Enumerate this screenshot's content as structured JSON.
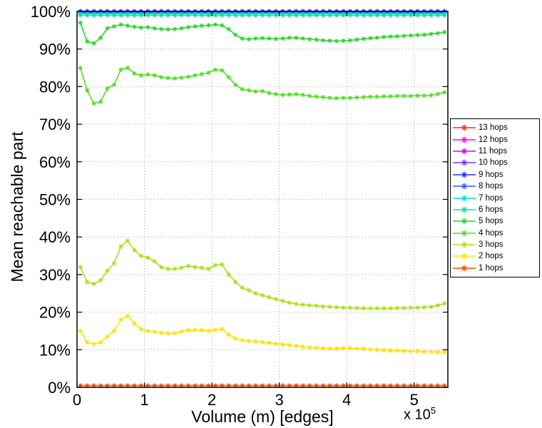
{
  "chart_data": {
    "type": "line",
    "title": "",
    "xlabel": "Volume (m) [edges]",
    "ylabel": "Mean reachable part",
    "x_scale_label": {
      "base": "x 10",
      "exponent": "5"
    },
    "xlim": [
      0,
      5.5
    ],
    "ylim": [
      0,
      100
    ],
    "xticks": [
      0,
      1,
      2,
      3,
      4,
      5
    ],
    "xtick_labels": [
      "0",
      "1",
      "2",
      "3",
      "4",
      "5"
    ],
    "yticks": [
      0,
      10,
      20,
      30,
      40,
      50,
      60,
      70,
      80,
      90,
      100
    ],
    "ytick_labels": [
      "0%",
      "10%",
      "20%",
      "30%",
      "40%",
      "50%",
      "60%",
      "70%",
      "80%",
      "90%",
      "100%"
    ],
    "grid": true,
    "legend_position": "right",
    "marker": "asterisk",
    "x": [
      0.05,
      0.15,
      0.25,
      0.35,
      0.45,
      0.55,
      0.65,
      0.75,
      0.85,
      0.95,
      1.05,
      1.15,
      1.25,
      1.35,
      1.45,
      1.55,
      1.65,
      1.75,
      1.85,
      1.95,
      2.05,
      2.15,
      2.25,
      2.35,
      2.45,
      2.55,
      2.65,
      2.75,
      2.85,
      2.95,
      3.05,
      3.15,
      3.25,
      3.35,
      3.45,
      3.55,
      3.65,
      3.75,
      3.85,
      3.95,
      4.05,
      4.15,
      4.25,
      4.35,
      4.45,
      4.55,
      4.65,
      4.75,
      4.85,
      4.95,
      5.05,
      5.15,
      5.25,
      5.35,
      5.45
    ],
    "series": [
      {
        "name": "13 hops",
        "color": "#ff2a1a",
        "const": 100
      },
      {
        "name": "12 hops",
        "color": "#ff00ff",
        "const": 100
      },
      {
        "name": "11 hops",
        "color": "#d400ff",
        "const": 100
      },
      {
        "name": "10 hops",
        "color": "#7733ff",
        "const": 100
      },
      {
        "name": "9 hops",
        "color": "#2b2bff",
        "const": 100
      },
      {
        "name": "8 hops",
        "color": "#2b5cff",
        "const": 99.7
      },
      {
        "name": "7 hops",
        "color": "#00d8e6",
        "const": 99.4
      },
      {
        "name": "6 hops",
        "color": "#00e690",
        "const": 99.0
      },
      {
        "name": "5 hops",
        "color": "#2fd32f",
        "values": [
          97,
          92,
          91.5,
          93,
          95.5,
          96,
          96.5,
          96.2,
          95.9,
          95.7,
          95.8,
          95.5,
          95.3,
          95.2,
          95.3,
          95.5,
          95.8,
          96,
          96.2,
          96.3,
          96.5,
          96.3,
          95.3,
          93.8,
          92.8,
          92.6,
          92.8,
          92.9,
          92.8,
          92.7,
          92.8,
          93,
          93,
          92.8,
          92.6,
          92.5,
          92.3,
          92.2,
          92.1,
          92.2,
          92.3,
          92.5,
          92.7,
          92.9,
          93,
          93.2,
          93.3,
          93.4,
          93.5,
          93.6,
          93.7,
          93.8,
          94,
          94.2,
          94.5
        ]
      },
      {
        "name": "4 hops",
        "color": "#52dd25",
        "values": [
          85,
          79,
          75.5,
          76,
          79.5,
          80.5,
          84.5,
          85,
          83.5,
          83,
          83.2,
          83,
          82.5,
          82.3,
          82.2,
          82.4,
          82.6,
          83,
          83.3,
          83.7,
          84.5,
          84.3,
          82.5,
          80.5,
          79.3,
          79,
          78.7,
          78.8,
          78.3,
          78,
          77.8,
          77.9,
          78,
          77.8,
          77.5,
          77.3,
          77.2,
          77,
          76.9,
          77,
          77,
          77.1,
          77.2,
          77.3,
          77.3,
          77.4,
          77.4,
          77.5,
          77.5,
          77.5,
          77.6,
          77.6,
          77.7,
          78,
          78.5
        ]
      },
      {
        "name": "3 hops",
        "color": "#a6e219",
        "values": [
          32,
          28,
          27.5,
          28.5,
          31,
          33,
          37.5,
          39,
          36.5,
          35,
          34.5,
          33.5,
          32,
          31.5,
          31.5,
          31.8,
          32.3,
          32,
          31.8,
          31.5,
          32.5,
          32.7,
          30,
          28,
          26.5,
          25.8,
          25,
          24.5,
          24,
          23.5,
          23,
          22.5,
          22.2,
          22,
          21.8,
          21.7,
          21.5,
          21.4,
          21.3,
          21.2,
          21.2,
          21.1,
          21,
          21,
          21,
          21,
          21,
          21.1,
          21.1,
          21.2,
          21.2,
          21.3,
          21.4,
          21.8,
          22.3
        ]
      },
      {
        "name": "2 hops",
        "color": "#ffe100",
        "values": [
          15,
          12,
          11.5,
          12,
          13.5,
          15,
          18,
          19,
          17,
          15.5,
          15,
          14.8,
          14.5,
          14.3,
          14.4,
          14.8,
          15.2,
          15.3,
          15.2,
          15,
          15.3,
          15.5,
          14,
          13,
          12.5,
          12.3,
          12.2,
          12,
          11.8,
          11.6,
          11.4,
          11.2,
          11,
          10.8,
          10.6,
          10.5,
          10.4,
          10.3,
          10.3,
          10.4,
          10.4,
          10.3,
          10.2,
          10.1,
          10,
          9.9,
          9.8,
          9.8,
          9.7,
          9.6,
          9.6,
          9.5,
          9.5,
          9.4,
          9.4
        ]
      },
      {
        "name": "1 hops",
        "color": "#ff4d00",
        "const": 0.5
      }
    ]
  }
}
